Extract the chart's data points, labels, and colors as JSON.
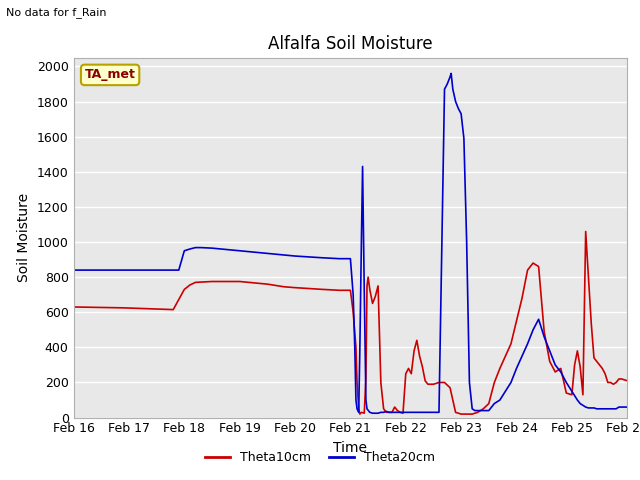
{
  "title": "Alfalfa Soil Moisture",
  "subtitle": "No data for f_Rain",
  "ylabel": "Soil Moisture",
  "xlabel": "Time",
  "annotation": "TA_met",
  "xlim_start": 0,
  "xlim_end": 10,
  "ylim": [
    0,
    2050
  ],
  "yticks": [
    0,
    200,
    400,
    600,
    800,
    1000,
    1200,
    1400,
    1600,
    1800,
    2000
  ],
  "xtick_labels": [
    "Feb 16",
    "Feb 17",
    "Feb 18",
    "Feb 19",
    "Feb 20",
    "Feb 21",
    "Feb 22",
    "Feb 23",
    "Feb 24",
    "Feb 25",
    "Feb 26"
  ],
  "xtick_positions": [
    0,
    1,
    2,
    3,
    4,
    5,
    6,
    7,
    8,
    9,
    10
  ],
  "bg_color": "#e8e8e8",
  "grid_color": "#ffffff",
  "theta10_color": "#cc0000",
  "theta20_color": "#0000cc",
  "legend_entries": [
    "Theta10cm",
    "Theta20cm"
  ],
  "theta10_data": [
    [
      0.0,
      630
    ],
    [
      0.9,
      625
    ],
    [
      1.8,
      615
    ],
    [
      2.0,
      730
    ],
    [
      2.1,
      755
    ],
    [
      2.2,
      770
    ],
    [
      2.5,
      775
    ],
    [
      3.0,
      775
    ],
    [
      3.5,
      760
    ],
    [
      3.8,
      745
    ],
    [
      4.0,
      740
    ],
    [
      4.5,
      730
    ],
    [
      4.8,
      725
    ],
    [
      5.0,
      725
    ],
    [
      5.05,
      600
    ],
    [
      5.1,
      400
    ],
    [
      5.12,
      200
    ],
    [
      5.15,
      50
    ],
    [
      5.17,
      20
    ],
    [
      5.2,
      30
    ],
    [
      5.25,
      25
    ],
    [
      5.28,
      220
    ],
    [
      5.3,
      750
    ],
    [
      5.32,
      800
    ],
    [
      5.35,
      730
    ],
    [
      5.4,
      650
    ],
    [
      5.45,
      690
    ],
    [
      5.5,
      750
    ],
    [
      5.55,
      200
    ],
    [
      5.6,
      50
    ],
    [
      5.65,
      30
    ],
    [
      5.7,
      30
    ],
    [
      5.75,
      30
    ],
    [
      5.8,
      60
    ],
    [
      5.85,
      40
    ],
    [
      5.9,
      30
    ],
    [
      5.95,
      25
    ],
    [
      6.0,
      250
    ],
    [
      6.05,
      280
    ],
    [
      6.1,
      250
    ],
    [
      6.15,
      380
    ],
    [
      6.2,
      440
    ],
    [
      6.25,
      350
    ],
    [
      6.3,
      290
    ],
    [
      6.35,
      210
    ],
    [
      6.4,
      190
    ],
    [
      6.5,
      190
    ],
    [
      6.6,
      200
    ],
    [
      6.7,
      200
    ],
    [
      6.8,
      170
    ],
    [
      6.9,
      30
    ],
    [
      7.0,
      20
    ],
    [
      7.05,
      20
    ],
    [
      7.1,
      20
    ],
    [
      7.2,
      20
    ],
    [
      7.3,
      30
    ],
    [
      7.4,
      50
    ],
    [
      7.5,
      80
    ],
    [
      7.6,
      200
    ],
    [
      7.7,
      280
    ],
    [
      7.8,
      350
    ],
    [
      7.9,
      420
    ],
    [
      8.0,
      550
    ],
    [
      8.1,
      680
    ],
    [
      8.2,
      840
    ],
    [
      8.3,
      880
    ],
    [
      8.4,
      860
    ],
    [
      8.5,
      490
    ],
    [
      8.6,
      320
    ],
    [
      8.7,
      260
    ],
    [
      8.8,
      280
    ],
    [
      8.9,
      140
    ],
    [
      9.0,
      130
    ],
    [
      9.05,
      300
    ],
    [
      9.1,
      380
    ],
    [
      9.15,
      290
    ],
    [
      9.2,
      130
    ],
    [
      9.25,
      1060
    ],
    [
      9.3,
      800
    ],
    [
      9.35,
      540
    ],
    [
      9.4,
      340
    ],
    [
      9.45,
      320
    ],
    [
      9.5,
      300
    ],
    [
      9.55,
      280
    ],
    [
      9.6,
      250
    ],
    [
      9.65,
      200
    ],
    [
      9.7,
      200
    ],
    [
      9.75,
      190
    ],
    [
      9.8,
      200
    ],
    [
      9.85,
      220
    ],
    [
      9.9,
      220
    ],
    [
      10.0,
      210
    ]
  ],
  "theta20_data": [
    [
      0.0,
      840
    ],
    [
      0.5,
      840
    ],
    [
      1.0,
      840
    ],
    [
      1.5,
      840
    ],
    [
      1.9,
      840
    ],
    [
      2.0,
      950
    ],
    [
      2.1,
      960
    ],
    [
      2.2,
      968
    ],
    [
      2.3,
      968
    ],
    [
      2.5,
      965
    ],
    [
      3.0,
      950
    ],
    [
      3.5,
      935
    ],
    [
      4.0,
      920
    ],
    [
      4.5,
      910
    ],
    [
      4.8,
      905
    ],
    [
      5.0,
      905
    ],
    [
      5.05,
      700
    ],
    [
      5.08,
      390
    ],
    [
      5.1,
      100
    ],
    [
      5.12,
      50
    ],
    [
      5.15,
      30
    ],
    [
      5.17,
      380
    ],
    [
      5.2,
      1030
    ],
    [
      5.22,
      1430
    ],
    [
      5.25,
      730
    ],
    [
      5.28,
      100
    ],
    [
      5.3,
      50
    ],
    [
      5.35,
      30
    ],
    [
      5.4,
      25
    ],
    [
      5.45,
      25
    ],
    [
      5.5,
      25
    ],
    [
      5.55,
      30
    ],
    [
      5.6,
      30
    ],
    [
      5.65,
      35
    ],
    [
      5.7,
      30
    ],
    [
      5.75,
      30
    ],
    [
      5.8,
      30
    ],
    [
      5.85,
      30
    ],
    [
      5.9,
      30
    ],
    [
      5.95,
      30
    ],
    [
      6.0,
      30
    ],
    [
      6.05,
      30
    ],
    [
      6.1,
      30
    ],
    [
      6.15,
      30
    ],
    [
      6.2,
      30
    ],
    [
      6.25,
      30
    ],
    [
      6.3,
      30
    ],
    [
      6.4,
      30
    ],
    [
      6.5,
      30
    ],
    [
      6.6,
      30
    ],
    [
      6.7,
      1870
    ],
    [
      6.75,
      1900
    ],
    [
      6.8,
      1940
    ],
    [
      6.82,
      1960
    ],
    [
      6.85,
      1870
    ],
    [
      6.9,
      1800
    ],
    [
      6.95,
      1760
    ],
    [
      7.0,
      1730
    ],
    [
      7.05,
      1590
    ],
    [
      7.1,
      1000
    ],
    [
      7.15,
      200
    ],
    [
      7.2,
      50
    ],
    [
      7.25,
      40
    ],
    [
      7.3,
      40
    ],
    [
      7.35,
      40
    ],
    [
      7.4,
      40
    ],
    [
      7.5,
      40
    ],
    [
      7.6,
      80
    ],
    [
      7.7,
      100
    ],
    [
      7.8,
      150
    ],
    [
      7.9,
      200
    ],
    [
      8.0,
      280
    ],
    [
      8.1,
      350
    ],
    [
      8.2,
      420
    ],
    [
      8.3,
      500
    ],
    [
      8.4,
      560
    ],
    [
      8.5,
      460
    ],
    [
      8.6,
      380
    ],
    [
      8.7,
      300
    ],
    [
      8.8,
      260
    ],
    [
      8.9,
      200
    ],
    [
      9.0,
      150
    ],
    [
      9.1,
      100
    ],
    [
      9.15,
      80
    ],
    [
      9.2,
      70
    ],
    [
      9.25,
      60
    ],
    [
      9.3,
      55
    ],
    [
      9.35,
      55
    ],
    [
      9.4,
      55
    ],
    [
      9.45,
      50
    ],
    [
      9.5,
      50
    ],
    [
      9.55,
      50
    ],
    [
      9.6,
      50
    ],
    [
      9.65,
      50
    ],
    [
      9.7,
      50
    ],
    [
      9.75,
      50
    ],
    [
      9.8,
      50
    ],
    [
      9.85,
      60
    ],
    [
      9.9,
      60
    ],
    [
      9.95,
      60
    ],
    [
      10.0,
      60
    ]
  ]
}
